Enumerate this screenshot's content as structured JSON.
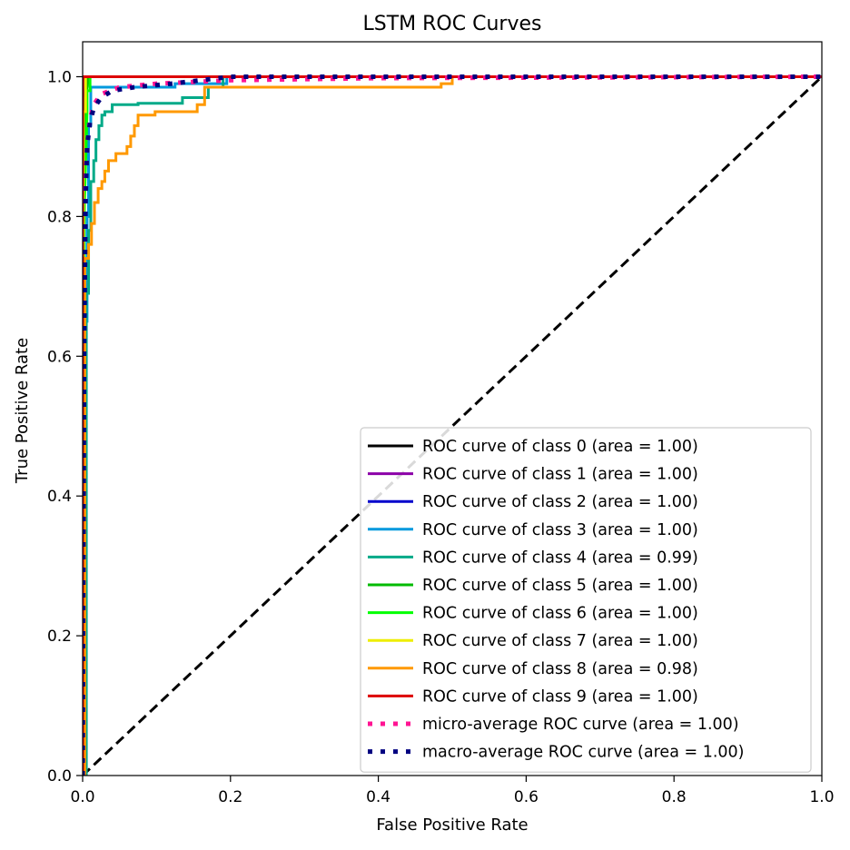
{
  "chart_data": {
    "type": "line",
    "title": "LSTM ROC Curves",
    "xlabel": "False Positive Rate",
    "ylabel": "True Positive Rate",
    "xlim": [
      0.0,
      1.0
    ],
    "ylim": [
      0.0,
      1.05
    ],
    "xticks": [
      0.0,
      0.2,
      0.4,
      0.6,
      0.8,
      1.0
    ],
    "xtick_labels": [
      "0.0",
      "0.2",
      "0.4",
      "0.6",
      "0.8",
      "1.0"
    ],
    "yticks": [
      0.0,
      0.2,
      0.4,
      0.6,
      0.8,
      1.0
    ],
    "ytick_labels": [
      "0.0",
      "0.2",
      "0.4",
      "0.6",
      "0.8",
      "1.0"
    ],
    "grid": false,
    "legend_position": "lower-right",
    "series": [
      {
        "name": "ROC curve of class 0 (area = 1.00)",
        "color": "#000000",
        "style": "solid",
        "x": [
          0,
          0,
          0.003,
          1
        ],
        "y": [
          0,
          0.99,
          1.0,
          1.0
        ]
      },
      {
        "name": "ROC curve of class 1 (area = 1.00)",
        "color": "#8c00a8",
        "style": "solid",
        "x": [
          0,
          0.001,
          0.002,
          0.004,
          1
        ],
        "y": [
          0,
          0.6,
          0.96,
          1.0,
          1.0
        ]
      },
      {
        "name": "ROC curve of class 2 (area = 1.00)",
        "color": "#0000cc",
        "style": "solid",
        "x": [
          0,
          0.001,
          0.003,
          0.005,
          1
        ],
        "y": [
          0,
          0.7,
          0.97,
          1.0,
          1.0
        ]
      },
      {
        "name": "ROC curve of class 3 (area = 1.00)",
        "color": "#0099dd",
        "style": "solid",
        "x": [
          0,
          0.003,
          0.003,
          0.006,
          0.006,
          0.008,
          0.008,
          0.011,
          0.011,
          0.125,
          0.125,
          0.195,
          0.195,
          1
        ],
        "y": [
          0,
          0,
          0.65,
          0.65,
          0.8,
          0.8,
          0.93,
          0.93,
          0.985,
          0.985,
          0.99,
          0.99,
          1.0,
          1.0
        ]
      },
      {
        "name": "ROC curve of class 4 (area = 0.99)",
        "color": "#00aa88",
        "style": "solid",
        "x": [
          0,
          0.005,
          0.005,
          0.008,
          0.008,
          0.011,
          0.011,
          0.015,
          0.015,
          0.018,
          0.018,
          0.022,
          0.022,
          0.026,
          0.026,
          0.03,
          0.03,
          0.04,
          0.04,
          0.075,
          0.075,
          0.135,
          0.135,
          0.17,
          0.17,
          0.19,
          0.19,
          1
        ],
        "y": [
          0,
          0,
          0.69,
          0.69,
          0.78,
          0.78,
          0.85,
          0.85,
          0.88,
          0.88,
          0.91,
          0.91,
          0.93,
          0.93,
          0.945,
          0.945,
          0.95,
          0.95,
          0.96,
          0.96,
          0.962,
          0.962,
          0.97,
          0.97,
          0.985,
          0.985,
          1.0,
          1.0
        ]
      },
      {
        "name": "ROC curve of class 5 (area = 1.00)",
        "color": "#00bb00",
        "style": "solid",
        "x": [
          0,
          0.001,
          0.004,
          0.008,
          1
        ],
        "y": [
          0,
          0.7,
          0.97,
          1.0,
          1.0
        ]
      },
      {
        "name": "ROC curve of class 6 (area = 1.00)",
        "color": "#00ff00",
        "style": "solid",
        "x": [
          0,
          0.002,
          0.006,
          0.006,
          0.01,
          0.01,
          1
        ],
        "y": [
          0,
          0.8,
          0.95,
          0.98,
          0.98,
          1.0,
          1.0
        ]
      },
      {
        "name": "ROC curve of class 7 (area = 1.00)",
        "color": "#eeee00",
        "style": "solid",
        "x": [
          0,
          0.001,
          0.001,
          0.004,
          0.004,
          1
        ],
        "y": [
          0,
          0.2,
          0.95,
          0.95,
          1.0,
          1.0
        ]
      },
      {
        "name": "ROC curve of class 8 (area = 0.98)",
        "color": "#ff9900",
        "style": "solid",
        "x": [
          0,
          0.003,
          0.003,
          0.008,
          0.008,
          0.012,
          0.012,
          0.016,
          0.016,
          0.021,
          0.021,
          0.026,
          0.026,
          0.03,
          0.03,
          0.035,
          0.035,
          0.045,
          0.045,
          0.06,
          0.06,
          0.065,
          0.065,
          0.07,
          0.07,
          0.075,
          0.075,
          0.098,
          0.098,
          0.155,
          0.155,
          0.165,
          0.165,
          0.485,
          0.485,
          0.5,
          0.5,
          1
        ],
        "y": [
          0,
          0,
          0.74,
          0.74,
          0.76,
          0.76,
          0.79,
          0.79,
          0.82,
          0.82,
          0.84,
          0.84,
          0.85,
          0.85,
          0.865,
          0.865,
          0.88,
          0.88,
          0.89,
          0.89,
          0.9,
          0.9,
          0.915,
          0.915,
          0.93,
          0.93,
          0.945,
          0.945,
          0.95,
          0.95,
          0.96,
          0.96,
          0.985,
          0.985,
          0.99,
          0.99,
          1.0,
          1.0
        ]
      },
      {
        "name": "ROC curve of class 9 (area = 1.00)",
        "color": "#dd0000",
        "style": "solid",
        "x": [
          0,
          0,
          0.001,
          1
        ],
        "y": [
          0,
          0.995,
          1.0,
          1.0
        ]
      },
      {
        "name": "micro-average ROC curve (area = 1.00)",
        "color": "#ff1493",
        "style": "dotted",
        "x": [
          0,
          0.001,
          0.002,
          0.004,
          0.007,
          0.01,
          0.015,
          0.025,
          0.05,
          0.1,
          0.2,
          0.4,
          1
        ],
        "y": [
          0,
          0.5,
          0.75,
          0.85,
          0.91,
          0.94,
          0.96,
          0.975,
          0.985,
          0.99,
          0.995,
          0.998,
          1.0
        ]
      },
      {
        "name": "macro-average ROC curve (area = 1.00)",
        "color": "#000080",
        "style": "dotted",
        "x": [
          0,
          0.001,
          0.002,
          0.004,
          0.006,
          0.01,
          0.015,
          0.025,
          0.04,
          0.07,
          0.12,
          0.2,
          0.5,
          1
        ],
        "y": [
          0,
          0.3,
          0.6,
          0.82,
          0.9,
          0.935,
          0.955,
          0.97,
          0.98,
          0.985,
          0.99,
          1.0,
          1.0,
          1.0
        ]
      }
    ],
    "reference_line": {
      "x": [
        0,
        1
      ],
      "y": [
        0,
        1
      ],
      "color": "#000000",
      "style": "dashed"
    }
  }
}
